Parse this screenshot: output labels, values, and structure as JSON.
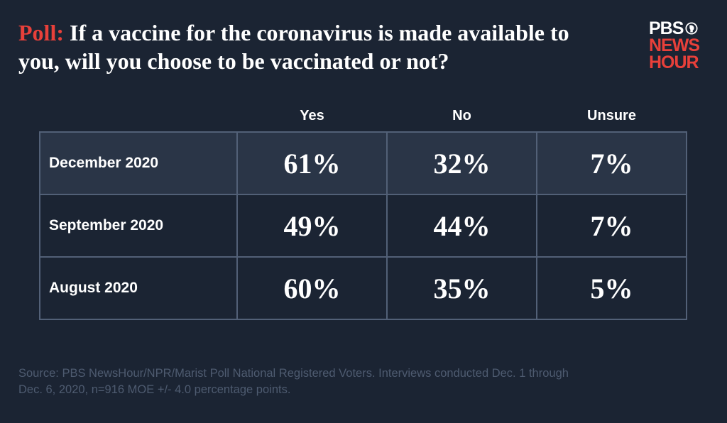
{
  "headline": {
    "lead": "Poll:",
    "text": " If a vaccine for the coronavirus is made available to you, will you choose to be vaccinated or not?"
  },
  "logo": {
    "line1": "PBS",
    "line2": "NEWS",
    "line3": "HOUR",
    "icon": "pbs-head-icon"
  },
  "colors": {
    "background": "#1b2433",
    "accent_red": "#e8403a",
    "grid_line": "#526077",
    "highlight_row": "#2a3547",
    "source_text": "#4e5b70"
  },
  "chart_data": {
    "type": "table",
    "columns": [
      "Yes",
      "No",
      "Unsure"
    ],
    "rows": [
      {
        "label": "December 2020",
        "values": [
          "61%",
          "32%",
          "7%"
        ]
      },
      {
        "label": "September 2020",
        "values": [
          "49%",
          "44%",
          "7%"
        ]
      },
      {
        "label": "August 2020",
        "values": [
          "60%",
          "35%",
          "5%"
        ]
      }
    ]
  },
  "source": "Source: PBS NewsHour/NPR/Marist Poll National Registered Voters. Interviews conducted Dec. 1 through Dec. 6, 2020, n=916 MOE +/- 4.0 percentage points."
}
